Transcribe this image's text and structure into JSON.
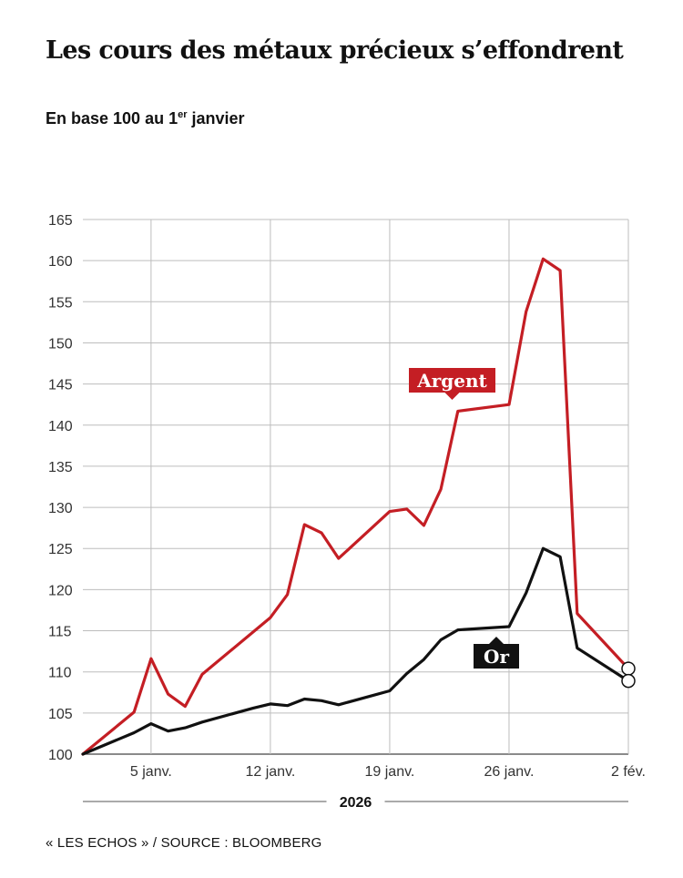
{
  "title": "Les cours des métaux précieux s’effondrent",
  "subtitle": {
    "text": "En base 100 au 1",
    "sup": "er",
    "after": " janvier"
  },
  "source": "« LES ECHOS » / SOURCE : BLOOMBERG",
  "chart_data": {
    "type": "line",
    "title": "Les cours des métaux précieux s’effondrent",
    "subtitle": "En base 100 au 1er janvier",
    "x_axis": {
      "range": [
        0,
        32
      ],
      "ticks": [
        {
          "x": 4,
          "label": "5 janv."
        },
        {
          "x": 11,
          "label": "12 janv."
        },
        {
          "x": 18,
          "label": "19 janv."
        },
        {
          "x": 25,
          "label": "26 janv."
        },
        {
          "x": 32,
          "label": "2 fév."
        }
      ],
      "year_label": "2026"
    },
    "y_axis": {
      "range": [
        100,
        165
      ],
      "ticks": [
        100,
        105,
        110,
        115,
        120,
        125,
        130,
        135,
        140,
        145,
        150,
        155,
        160,
        165
      ]
    },
    "grid": true,
    "series": [
      {
        "name": "Argent",
        "color": "#c41e24",
        "points": [
          [
            0,
            100
          ],
          [
            3,
            105.1
          ],
          [
            4,
            111.6
          ],
          [
            5,
            107.3
          ],
          [
            6,
            105.8
          ],
          [
            7,
            109.7
          ],
          [
            11,
            116.6
          ],
          [
            12,
            119.4
          ],
          [
            13,
            127.9
          ],
          [
            14,
            126.9
          ],
          [
            15,
            123.8
          ],
          [
            18,
            129.5
          ],
          [
            19,
            129.8
          ],
          [
            20,
            127.8
          ],
          [
            21,
            132.2
          ],
          [
            22,
            141.7
          ],
          [
            25,
            142.5
          ],
          [
            26,
            153.8
          ],
          [
            27,
            160.2
          ],
          [
            28,
            158.8
          ],
          [
            29,
            117.1
          ],
          [
            32,
            110.4
          ]
        ]
      },
      {
        "name": "Or",
        "color": "#111111",
        "points": [
          [
            0,
            100
          ],
          [
            3,
            102.6
          ],
          [
            4,
            103.7
          ],
          [
            5,
            102.8
          ],
          [
            6,
            103.2
          ],
          [
            7,
            103.9
          ],
          [
            10,
            105.6
          ],
          [
            11,
            106.1
          ],
          [
            12,
            105.9
          ],
          [
            13,
            106.7
          ],
          [
            14,
            106.5
          ],
          [
            15,
            106
          ],
          [
            18,
            107.7
          ],
          [
            19,
            109.8
          ],
          [
            20,
            111.5
          ],
          [
            21,
            113.9
          ],
          [
            22,
            115.1
          ],
          [
            25,
            115.5
          ],
          [
            26,
            119.6
          ],
          [
            27,
            125
          ],
          [
            28,
            124
          ],
          [
            29,
            112.9
          ],
          [
            32,
            108.9
          ]
        ]
      }
    ]
  }
}
